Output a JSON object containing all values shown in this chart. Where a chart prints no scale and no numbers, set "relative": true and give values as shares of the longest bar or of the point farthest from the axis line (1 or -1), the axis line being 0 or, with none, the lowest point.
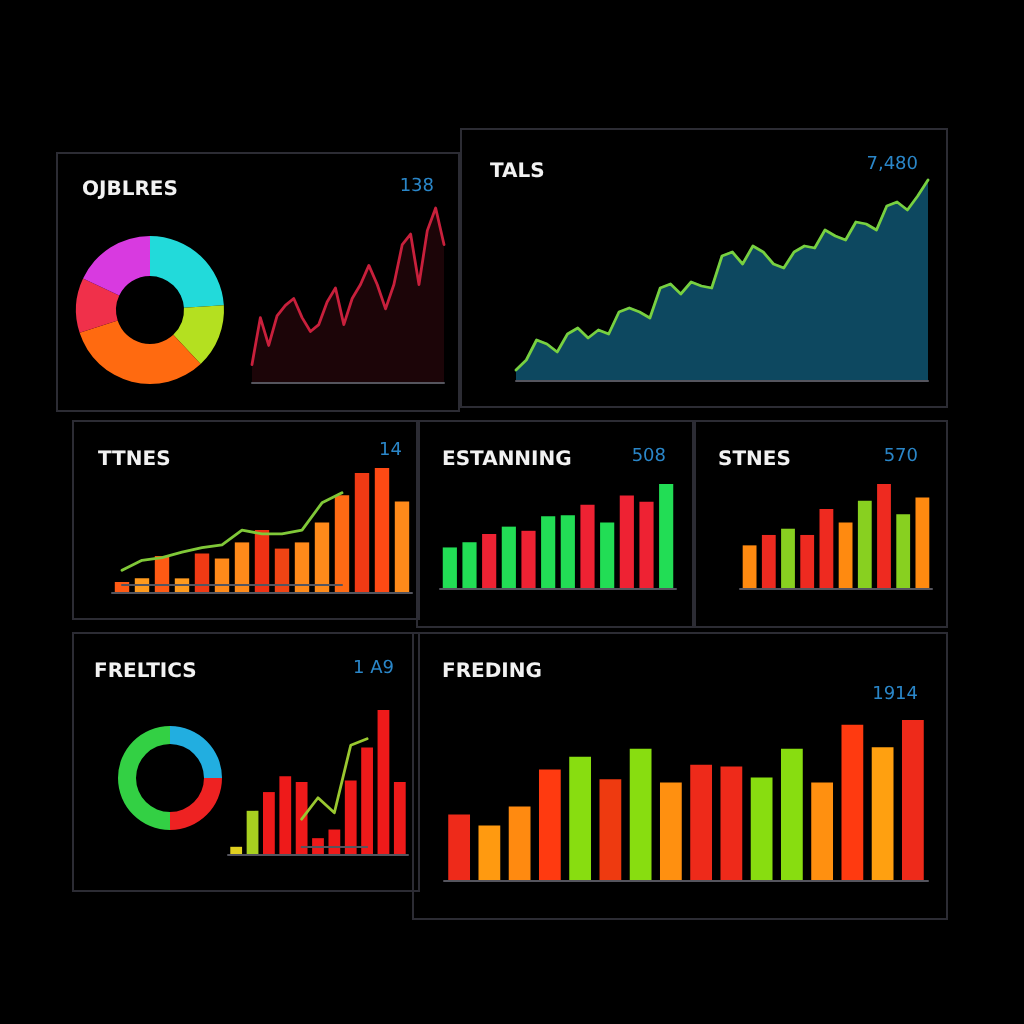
{
  "chart_data": [
    {
      "type": "donut",
      "title": "OJBLRES",
      "categories": [
        null,
        null,
        null,
        null,
        null
      ],
      "values": [
        24,
        14,
        32,
        12,
        18
      ],
      "colors": [
        "#22dada",
        "#b4e020",
        "#ff6a10",
        "#f0304a",
        "#d83ae0"
      ]
    },
    {
      "type": "area",
      "annotations": [
        "138"
      ],
      "relative": true,
      "categories": [
        null,
        null,
        null,
        null,
        null,
        null,
        null,
        null,
        null,
        null,
        null,
        null,
        null,
        null,
        null,
        null,
        null,
        null,
        null,
        null,
        null,
        null,
        null,
        null
      ],
      "color": "#c8203c",
      "values": [
        0.1,
        0.37,
        0.21,
        0.38,
        0.44,
        0.48,
        0.37,
        0.29,
        0.33,
        0.46,
        0.54,
        0.33,
        0.48,
        0.56,
        0.67,
        0.56,
        0.42,
        0.56,
        0.79,
        0.85,
        0.56,
        0.87,
        1.0,
        0.79
      ]
    },
    {
      "type": "area",
      "title": "TALS",
      "annotations": [
        "7,480"
      ],
      "relative": true,
      "categories": [
        null,
        null,
        null,
        null,
        null,
        null,
        null,
        null,
        null,
        null,
        null,
        null,
        null,
        null,
        null,
        null,
        null,
        null,
        null,
        null,
        null,
        null,
        null,
        null,
        null,
        null,
        null,
        null,
        null,
        null,
        null,
        null,
        null,
        null,
        null,
        null,
        null,
        null,
        null,
        null,
        null
      ],
      "series": [
        {
          "type": "area",
          "color": "#0d4860",
          "values": [
            0.05,
            0.1,
            0.2,
            0.18,
            0.14,
            0.23,
            0.26,
            0.21,
            0.25,
            0.23,
            0.34,
            0.36,
            0.34,
            0.31,
            0.46,
            0.48,
            0.43,
            0.49,
            0.47,
            0.46,
            0.62,
            0.64,
            0.58,
            0.67,
            0.64,
            0.58,
            0.56,
            0.64,
            0.67,
            0.66,
            0.75,
            0.72,
            0.7,
            0.79,
            0.78,
            0.75,
            0.87,
            0.89,
            0.85,
            0.92,
            1.0
          ]
        },
        {
          "type": "line",
          "color": "#78d040",
          "values": [
            0.05,
            0.1,
            0.2,
            0.18,
            0.14,
            0.23,
            0.26,
            0.21,
            0.25,
            0.23,
            0.34,
            0.36,
            0.34,
            0.31,
            0.46,
            0.48,
            0.43,
            0.49,
            0.47,
            0.46,
            0.62,
            0.64,
            0.58,
            0.67,
            0.64,
            0.58,
            0.56,
            0.64,
            0.67,
            0.66,
            0.75,
            0.72,
            0.7,
            0.79,
            0.78,
            0.75,
            0.87,
            0.89,
            0.85,
            0.92,
            1.0
          ]
        }
      ]
    },
    {
      "type": "bar",
      "title": "TTNES",
      "annotations": [
        "14"
      ],
      "relative": true,
      "categories": [
        null,
        null,
        null,
        null,
        null,
        null,
        null,
        null,
        null,
        null,
        null,
        null,
        null,
        null,
        null
      ],
      "values": [
        0.08,
        0.11,
        0.29,
        0.11,
        0.31,
        0.27,
        0.4,
        0.5,
        0.35,
        0.4,
        0.56,
        0.78,
        0.96,
        1.0,
        0.73
      ],
      "colors": [
        "#ff5a14",
        "#ff9a1e",
        "#ff5a14",
        "#ff9a1e",
        "#f03a14",
        "#ff8a1a",
        "#ff8a1a",
        "#f03214",
        "#f04414",
        "#ff8a1a",
        "#ff8a1a",
        "#ff6a14",
        "#f03a14",
        "#ff4a14",
        "#ff8a1a"
      ]
    },
    {
      "type": "line",
      "relative": true,
      "categories": [
        null,
        null,
        null,
        null,
        null,
        null,
        null,
        null,
        null,
        null,
        null,
        null
      ],
      "color": "#80c838",
      "values": [
        0.15,
        0.26,
        0.29,
        0.35,
        0.4,
        0.43,
        0.59,
        0.55,
        0.55,
        0.59,
        0.89,
        1.0
      ]
    },
    {
      "type": "bar",
      "title": "ESTANNING",
      "annotations": [
        "508"
      ],
      "relative": true,
      "categories": [
        null,
        null,
        null,
        null,
        null,
        null,
        null,
        null,
        null,
        null,
        null,
        null
      ],
      "values": [
        0.39,
        0.44,
        0.52,
        0.59,
        0.55,
        0.69,
        0.7,
        0.8,
        0.63,
        0.89,
        0.83,
        1.0
      ],
      "colors": [
        "#22dd55",
        "#22dd55",
        "#ee2233",
        "#22dd55",
        "#ee2233",
        "#22dd55",
        "#22dd55",
        "#ee2233",
        "#22dd55",
        "#ee2233",
        "#ee2233",
        "#22dd55"
      ]
    },
    {
      "type": "bar",
      "title": "STNES",
      "annotations": [
        "570"
      ],
      "relative": true,
      "categories": [
        null,
        null,
        null,
        null,
        null,
        null,
        null,
        null,
        null,
        null
      ],
      "values": [
        0.41,
        0.51,
        0.57,
        0.51,
        0.76,
        0.63,
        0.84,
        1.0,
        0.71,
        0.87
      ],
      "colors": [
        "#ff8a10",
        "#ee2a20",
        "#88d020",
        "#ee2a20",
        "#ee2a20",
        "#ff8a10",
        "#88d020",
        "#ee2a20",
        "#88d020",
        "#ff8a10"
      ]
    },
    {
      "type": "donut",
      "title": "FRELTICS",
      "categories": [
        null,
        null,
        null
      ],
      "values": [
        25,
        25,
        50
      ],
      "colors": [
        "#22aee0",
        "#ee2222",
        "#33d044"
      ]
    },
    {
      "type": "bar",
      "annotations": [
        "1 A9"
      ],
      "relative": true,
      "categories": [
        null,
        null,
        null,
        null,
        null,
        null,
        null,
        null,
        null,
        null,
        null
      ],
      "values": [
        0.05,
        0.3,
        0.43,
        0.54,
        0.5,
        0.11,
        0.17,
        0.51,
        0.74,
        1.0,
        0.5
      ],
      "colors": [
        "#e0d020",
        "#a8d020",
        "#ee1a1a",
        "#ee1a1a",
        "#ee1a1a",
        "#ee1a1a",
        "#ee1a1a",
        "#ee1a1a",
        "#ee1a1a",
        "#ee1a1a",
        "#ee1a1a"
      ]
    },
    {
      "type": "line",
      "relative": true,
      "categories": [
        null,
        null,
        null,
        null,
        null
      ],
      "color": "#9ac830",
      "values": [
        0.25,
        0.45,
        0.31,
        0.94,
        1.0
      ]
    },
    {
      "type": "bar",
      "title": "FREDING",
      "annotations": [
        "1914"
      ],
      "relative": true,
      "categories": [
        null,
        null,
        null,
        null,
        null,
        null,
        null,
        null,
        null,
        null,
        null,
        null,
        null,
        null,
        null,
        null
      ],
      "values": [
        0.41,
        0.34,
        0.46,
        0.69,
        0.77,
        0.63,
        0.82,
        0.61,
        0.72,
        0.71,
        0.64,
        0.82,
        0.61,
        0.97,
        0.83,
        1.0
      ],
      "colors": [
        "#ee2a1a",
        "#ff9a10",
        "#ff8a10",
        "#ff3a10",
        "#88dd10",
        "#ee3a10",
        "#88dd10",
        "#ff9010",
        "#ee2a1a",
        "#ee2a1a",
        "#88dd10",
        "#88dd10",
        "#ff9010",
        "#ff3a10",
        "#ffa010",
        "#ee2a1a"
      ]
    }
  ]
}
